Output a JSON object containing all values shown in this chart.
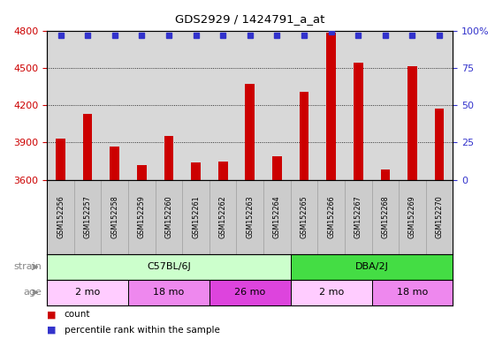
{
  "title": "GDS2929 / 1424791_a_at",
  "samples": [
    "GSM152256",
    "GSM152257",
    "GSM152258",
    "GSM152259",
    "GSM152260",
    "GSM152261",
    "GSM152262",
    "GSM152263",
    "GSM152264",
    "GSM152265",
    "GSM152266",
    "GSM152267",
    "GSM152268",
    "GSM152269",
    "GSM152270"
  ],
  "counts": [
    3930,
    4130,
    3870,
    3720,
    3950,
    3740,
    3745,
    4370,
    3790,
    4310,
    4780,
    4540,
    3680,
    4510,
    4170
  ],
  "percentiles": [
    97,
    97,
    97,
    97,
    97,
    97,
    97,
    97,
    97,
    97,
    99,
    97,
    97,
    97,
    97
  ],
  "bar_color": "#cc0000",
  "dot_color": "#3333cc",
  "ylim_left": [
    3600,
    4800
  ],
  "ylim_right": [
    0,
    100
  ],
  "yticks_left": [
    3600,
    3900,
    4200,
    4500,
    4800
  ],
  "yticks_right": [
    0,
    25,
    50,
    75,
    100
  ],
  "ytick_labels_right": [
    "0",
    "25",
    "50",
    "75",
    "100%"
  ],
  "strain_groups": [
    {
      "label": "C57BL/6J",
      "start": 0,
      "end": 8,
      "color": "#ccffcc"
    },
    {
      "label": "DBA/2J",
      "start": 9,
      "end": 14,
      "color": "#44dd44"
    }
  ],
  "age_colors": [
    "#ffccff",
    "#ee88ee",
    "#dd44dd",
    "#ffccff",
    "#ee88ee"
  ],
  "age_groups": [
    {
      "label": "2 mo",
      "start": 0,
      "end": 2
    },
    {
      "label": "18 mo",
      "start": 3,
      "end": 5
    },
    {
      "label": "26 mo",
      "start": 6,
      "end": 8
    },
    {
      "label": "2 mo",
      "start": 9,
      "end": 11
    },
    {
      "label": "18 mo",
      "start": 12,
      "end": 14
    }
  ],
  "strain_label": "strain",
  "age_label": "age",
  "legend_count": "count",
  "legend_pct": "percentile rank within the sample",
  "plot_bg": "#d8d8d8",
  "label_bg": "#cccccc",
  "left_axis_color": "#cc0000",
  "right_axis_color": "#3333cc",
  "bar_width": 0.35
}
